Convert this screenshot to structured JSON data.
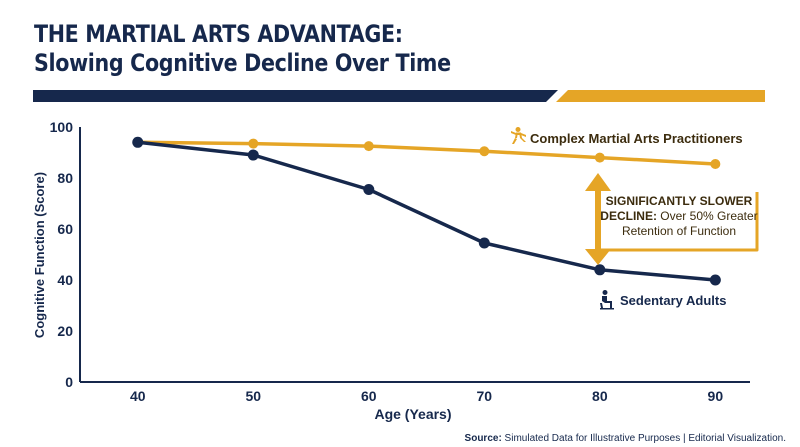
{
  "header": {
    "title_line1": "THE MARTIAL ARTS ADVANTAGE:",
    "title_line2": "Slowing Cognitive Decline Over Time"
  },
  "colors": {
    "navy": "#16284c",
    "gold": "#e5a526",
    "annotation_text": "#3c2c0e"
  },
  "chart_data": {
    "type": "line",
    "x": [
      40,
      50,
      60,
      70,
      80,
      90
    ],
    "xlabel": "Age (Years)",
    "ylabel": "Cognitive Function (Score)",
    "xticks": [
      "40",
      "50",
      "60",
      "70",
      "80",
      "90"
    ],
    "yticks": [
      "0",
      "20",
      "40",
      "60",
      "80",
      "100"
    ],
    "xlim": [
      35,
      93
    ],
    "ylim": [
      0,
      100
    ],
    "grid": false,
    "series": [
      {
        "name": "Complex Martial Arts Practitioners",
        "color": "#e5a526",
        "icon": "martial-arts-figure-icon",
        "values": [
          94,
          93.5,
          92.5,
          90.5,
          88,
          85.5
        ]
      },
      {
        "name": "Sedentary Adults",
        "color": "#16284c",
        "icon": "seated-person-icon",
        "values": [
          94,
          89,
          75.5,
          54.5,
          44,
          40
        ]
      }
    ],
    "annotation": {
      "heading_line1": "SIGNIFICANTLY SLOWER",
      "heading_line2_bold": "DECLINE:",
      "heading_line2_rest": " Over 50% Greater",
      "line3": "Retention of Function"
    }
  },
  "footer": {
    "source_label": "Source:",
    "source_text": " Simulated Data for Illustrative Purposes | Editorial Visualization."
  }
}
